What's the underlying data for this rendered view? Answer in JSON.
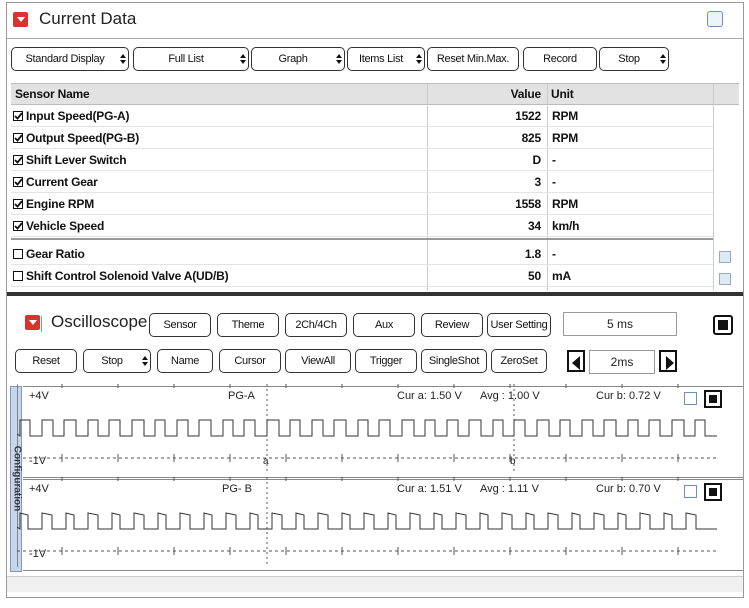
{
  "current_data": {
    "title": "Current Data",
    "buttons": [
      "Standard Display",
      "Full List",
      "Graph",
      "Items List",
      "Reset Min.Max.",
      "Record",
      "Stop"
    ],
    "table": {
      "columns": [
        "Sensor Name",
        "Value",
        "Unit"
      ],
      "rows": [
        {
          "checked": true,
          "name": "Input Speed(PG-A)",
          "value": 1522,
          "unit": "RPM"
        },
        {
          "checked": true,
          "name": "Output Speed(PG-B)",
          "value": 825,
          "unit": "RPM"
        },
        {
          "checked": true,
          "name": "Shift Lever Switch",
          "value": "D",
          "unit": "-"
        },
        {
          "checked": true,
          "name": "Current Gear",
          "value": 3,
          "unit": "-"
        },
        {
          "checked": true,
          "name": "Engine RPM",
          "value": 1558,
          "unit": "RPM"
        },
        {
          "checked": true,
          "name": "Vehicle Speed",
          "value": 34,
          "unit": "km/h"
        },
        {
          "checked": false,
          "name": "Gear Ratio",
          "value": 1.8,
          "unit": "-"
        },
        {
          "checked": false,
          "name": "Shift Control Solenoid Valve A(UD/B)",
          "value": 50,
          "unit": "mA"
        }
      ]
    }
  },
  "oscilloscope": {
    "title": "Oscilloscope",
    "buttons": [
      "Sensor",
      "Theme",
      "2Ch/4Ch",
      "Aux",
      "Review",
      "User Setting"
    ],
    "time_div": "5 ms",
    "toolbar": [
      "Reset",
      "Stop",
      "Name",
      "Cursor",
      "ViewAll",
      "Trigger",
      "SingleShot",
      "ZeroSet"
    ],
    "scale": "2ms",
    "side_tab": "Configuration",
    "channels": [
      {
        "name": "PG-A",
        "top": "+4V",
        "bottom": "-1V",
        "cur_a": "Cur a: 1.50 V",
        "avg": "Avg : 1.00 V",
        "cur_b": "Cur b: 0.72 V",
        "cursor_a": "a",
        "cursor_b": "b"
      },
      {
        "name": "PG- B",
        "top": "+4V",
        "bottom": "-1V",
        "cur_a": "Cur a: 1.51 V",
        "avg": "Avg : 1.11 V",
        "cur_b": "Cur b: 0.70 V"
      }
    ]
  }
}
